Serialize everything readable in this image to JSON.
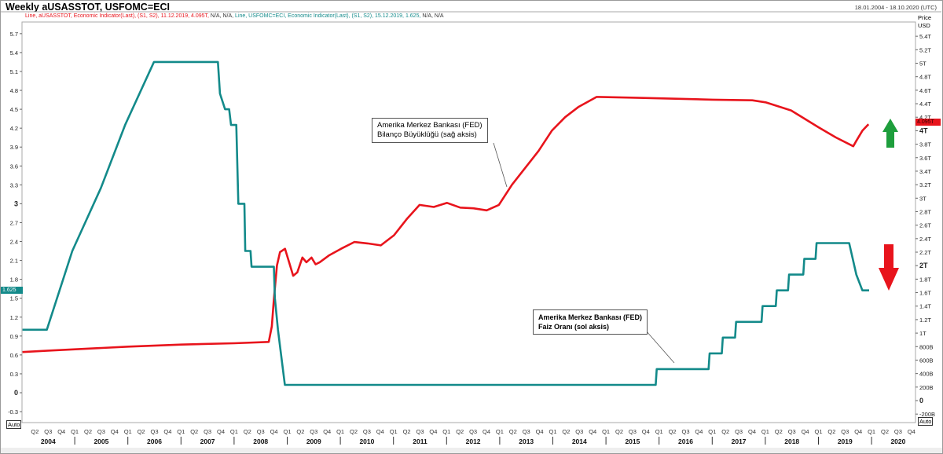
{
  "header": {
    "title": "Weekly aUSASSTOT, USFOMC=ECI",
    "date_range": "18.01.2004 - 18.10.2020 (UTC)"
  },
  "legend": {
    "series1": "Line, aUSASSTOT, Economic Indicator(Last), (S1, S2), 11.12.2019, 4.095T,",
    "series1_na": " N/A, N/A, ",
    "series2": "Line, USFOMC=ECI, Economic Indicator(Last), (S1, S2), 15.12.2019, 1.625,",
    "series2_na": " N/A, N/A"
  },
  "auto_label": "Auto",
  "right_axis_header": [
    "Price",
    "USD"
  ],
  "chart_data": {
    "type": "line",
    "x_range": [
      "2004-01-01",
      "2020-12-31"
    ],
    "left_axis": {
      "ticks": [
        -0.3,
        0,
        0.3,
        0.6,
        0.9,
        1.2,
        1.5,
        1.8,
        2.1,
        2.4,
        2.7,
        3,
        3.3,
        3.6,
        3.9,
        4.2,
        4.5,
        4.8,
        5.1,
        5.4,
        5.7
      ],
      "range": [
        -0.4,
        5.9
      ],
      "current_label": "1.625"
    },
    "right_axis": {
      "ticks": [
        "-200B",
        "0",
        "200B",
        "400B",
        "600B",
        "800B",
        "1T",
        "1.2T",
        "1.4T",
        "1.6T",
        "1.8T",
        "2T",
        "2.2T",
        "2.4T",
        "2.6T",
        "2.8T",
        "3T",
        "3.2T",
        "3.4T",
        "3.6T",
        "3.8T",
        "4T",
        "4.2T",
        "4.4T",
        "4.6T",
        "4.8T",
        "5T",
        "5.2T",
        "5.4T"
      ],
      "tick_values": [
        -0.2,
        0,
        0.2,
        0.4,
        0.6,
        0.8,
        1,
        1.2,
        1.4,
        1.6,
        1.8,
        2,
        2.2,
        2.4,
        2.6,
        2.8,
        3,
        3.2,
        3.4,
        3.6,
        3.8,
        4,
        4.2,
        4.4,
        4.6,
        4.8,
        5,
        5.2,
        5.4
      ],
      "current_label": "4.095T"
    },
    "x_quarters": [
      "Q1",
      "Q2",
      "Q3",
      "Q4"
    ],
    "years": [
      "2004",
      "2005",
      "2006",
      "2007",
      "2008",
      "2009",
      "2010",
      "2011",
      "2012",
      "2013",
      "2014",
      "2015",
      "2016",
      "2017",
      "2018",
      "2019",
      "2020"
    ],
    "grid": false,
    "series": [
      {
        "name": "aUSASSTOT",
        "axis": "right",
        "unit": "T USD",
        "color": "#e8141c",
        "points": [
          [
            "2004-01-07",
            0.72
          ],
          [
            "2004-06-30",
            0.74
          ],
          [
            "2005-01-05",
            0.76
          ],
          [
            "2006-01-04",
            0.8
          ],
          [
            "2007-01-03",
            0.83
          ],
          [
            "2008-01-02",
            0.85
          ],
          [
            "2008-08-27",
            0.87
          ],
          [
            "2008-09-17",
            1.1
          ],
          [
            "2008-10-01",
            1.5
          ],
          [
            "2008-10-22",
            2.0
          ],
          [
            "2008-11-12",
            2.2
          ],
          [
            "2008-12-17",
            2.25
          ],
          [
            "2009-01-14",
            2.05
          ],
          [
            "2009-02-11",
            1.85
          ],
          [
            "2009-03-11",
            1.9
          ],
          [
            "2009-04-15",
            2.12
          ],
          [
            "2009-05-13",
            2.05
          ],
          [
            "2009-06-17",
            2.12
          ],
          [
            "2009-07-15",
            2.02
          ],
          [
            "2009-08-12",
            2.05
          ],
          [
            "2009-10-14",
            2.15
          ],
          [
            "2010-01-06",
            2.25
          ],
          [
            "2010-04-07",
            2.35
          ],
          [
            "2010-07-07",
            2.33
          ],
          [
            "2010-10-06",
            2.3
          ],
          [
            "2011-01-05",
            2.45
          ],
          [
            "2011-04-06",
            2.7
          ],
          [
            "2011-06-29",
            2.9
          ],
          [
            "2011-10-05",
            2.87
          ],
          [
            "2012-01-04",
            2.93
          ],
          [
            "2012-04-04",
            2.86
          ],
          [
            "2012-07-04",
            2.85
          ],
          [
            "2012-10-03",
            2.82
          ],
          [
            "2012-12-26",
            2.9
          ],
          [
            "2013-03-27",
            3.2
          ],
          [
            "2013-06-26",
            3.45
          ],
          [
            "2013-09-25",
            3.7
          ],
          [
            "2013-12-25",
            4.0
          ],
          [
            "2014-03-26",
            4.2
          ],
          [
            "2014-06-25",
            4.35
          ],
          [
            "2014-10-29",
            4.5
          ],
          [
            "2015-06-24",
            4.49
          ],
          [
            "2016-01-06",
            4.48
          ],
          [
            "2017-01-04",
            4.46
          ],
          [
            "2017-10-04",
            4.45
          ],
          [
            "2018-01-03",
            4.42
          ],
          [
            "2018-06-27",
            4.3
          ],
          [
            "2019-01-02",
            4.05
          ],
          [
            "2019-05-01",
            3.9
          ],
          [
            "2019-08-28",
            3.77
          ],
          [
            "2019-09-18",
            3.85
          ],
          [
            "2019-10-30",
            4.0
          ],
          [
            "2019-12-11",
            4.095
          ]
        ]
      },
      {
        "name": "USFOMC=ECI",
        "axis": "left",
        "unit": "%",
        "color": "#138a8a",
        "points": [
          [
            "2004-01-07",
            1.0
          ],
          [
            "2004-06-23",
            1.0
          ],
          [
            "2004-12-15",
            2.25
          ],
          [
            "2005-06-30",
            3.25
          ],
          [
            "2005-12-13",
            4.25
          ],
          [
            "2006-06-29",
            5.25
          ],
          [
            "2007-09-12",
            5.25
          ],
          [
            "2007-09-26",
            4.75
          ],
          [
            "2007-10-31",
            4.5
          ],
          [
            "2007-11-28",
            4.5
          ],
          [
            "2007-12-11",
            4.25
          ],
          [
            "2008-01-16",
            4.25
          ],
          [
            "2008-01-30",
            3.0
          ],
          [
            "2008-03-12",
            3.0
          ],
          [
            "2008-03-18",
            2.25
          ],
          [
            "2008-04-23",
            2.25
          ],
          [
            "2008-04-30",
            2.0
          ],
          [
            "2008-10-01",
            2.0
          ],
          [
            "2008-10-08",
            1.5
          ],
          [
            "2008-10-29",
            1.0
          ],
          [
            "2008-12-16",
            0.125
          ],
          [
            "2015-12-09",
            0.125
          ],
          [
            "2015-12-16",
            0.375
          ],
          [
            "2016-12-07",
            0.375
          ],
          [
            "2016-12-14",
            0.625
          ],
          [
            "2017-03-08",
            0.625
          ],
          [
            "2017-03-15",
            0.875
          ],
          [
            "2017-06-07",
            0.875
          ],
          [
            "2017-06-14",
            1.125
          ],
          [
            "2017-12-06",
            1.125
          ],
          [
            "2017-12-13",
            1.375
          ],
          [
            "2018-03-14",
            1.375
          ],
          [
            "2018-03-21",
            1.625
          ],
          [
            "2018-06-06",
            1.625
          ],
          [
            "2018-06-13",
            1.875
          ],
          [
            "2018-09-19",
            1.875
          ],
          [
            "2018-09-26",
            2.125
          ],
          [
            "2018-12-12",
            2.125
          ],
          [
            "2018-12-19",
            2.375
          ],
          [
            "2019-07-31",
            2.375
          ],
          [
            "2019-09-18",
            1.875
          ],
          [
            "2019-10-30",
            1.625
          ],
          [
            "2019-12-15",
            1.625
          ]
        ]
      }
    ],
    "annotations": [
      {
        "line1": "Amerika Merkez Bankası (FED)",
        "line2": "Bilanço Büyüklüğü (sağ aksis)"
      },
      {
        "line1": "Amerika Merkez Bankası (FED)",
        "line2": " Faiz Oranı (sol aksis)"
      }
    ],
    "arrows": [
      {
        "direction": "up",
        "color": "#1e9e3c"
      },
      {
        "direction": "down",
        "color": "#e8141c"
      }
    ]
  }
}
